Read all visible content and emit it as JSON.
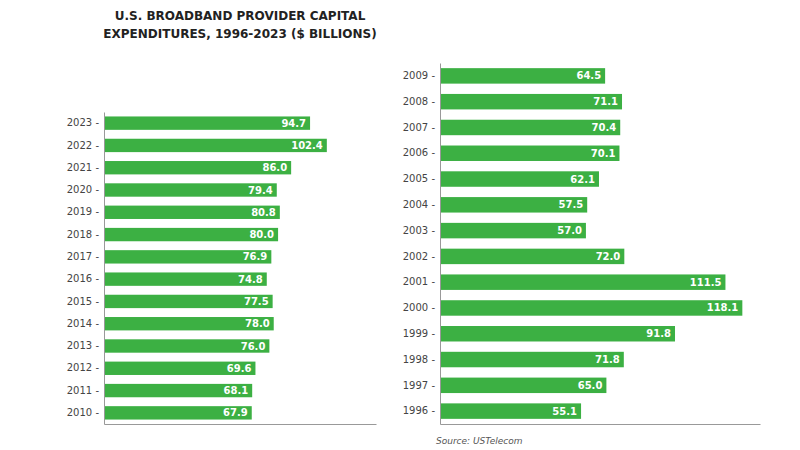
{
  "chart_data": [
    {
      "type": "bar",
      "orientation": "horizontal",
      "title": "U.S. BROADBAND PROVIDER CAPITAL",
      "subtitle": "EXPENDITURES, 1996-2023 ($ BILLIONS)",
      "categories": [
        "2023 -",
        "2022 -",
        "2021 -",
        "2020 -",
        "2019 -",
        "2018 -",
        "2017 -",
        "2016 -",
        "2015 -",
        "2014 -",
        "2013 -",
        "2012 -",
        "2011 -",
        "2010 -"
      ],
      "values": [
        94.7,
        102.4,
        86.0,
        79.4,
        80.8,
        80.0,
        76.9,
        74.8,
        77.5,
        78.0,
        76.0,
        69.6,
        68.1,
        67.9
      ],
      "value_labels": [
        "94.7",
        "102.4",
        "86.0",
        "79.4",
        "80.8",
        "80.0",
        "76.9",
        "74.8",
        "77.5",
        "78.0",
        "76.0",
        "69.6",
        "68.1",
        "67.9"
      ],
      "color": "#3cb043",
      "xlim": [
        0,
        125
      ],
      "data_labels": true,
      "tick_labels": "y",
      "grid": false
    },
    {
      "type": "bar",
      "orientation": "horizontal",
      "categories": [
        "2009 -",
        "2008 -",
        "2007 -",
        "2006 -",
        "2005 -",
        "2004 -",
        "2003 -",
        "2002 -",
        "2001 -",
        "2000 -",
        "1999 -",
        "1998 -",
        "1997 -",
        "1996 -"
      ],
      "values": [
        64.5,
        71.1,
        70.4,
        70.1,
        62.1,
        57.5,
        57.0,
        72.0,
        111.5,
        118.1,
        91.8,
        71.8,
        65.0,
        55.1
      ],
      "value_labels": [
        "64.5",
        "71.1",
        "70.4",
        "70.1",
        "62.1",
        "57.5",
        "57.0",
        "72.0",
        "111.5",
        "118.1",
        "91.8",
        "71.8",
        "65.0",
        "55.1"
      ],
      "color": "#3cb043",
      "xlim": [
        0,
        125
      ],
      "data_labels": true,
      "tick_labels": "y",
      "grid": false,
      "annotations": [
        "Source: USTelecom"
      ]
    }
  ]
}
